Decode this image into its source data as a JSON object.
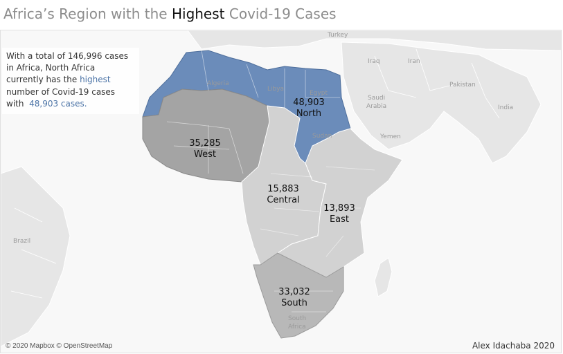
{
  "title": {
    "prefix": "Africa’s Region with the ",
    "highlight": "Highest",
    "suffix": " Covid-19 Cases"
  },
  "summary": {
    "line1_prefix": "With a total of ",
    "total_cases": "146,996",
    "line1_suffix": " cases",
    "line2": "in Africa, North Africa",
    "line3_prefix": "currently has the ",
    "line3_highlight": "highest",
    "line4": "number of Covid-19 cases",
    "line5_prefix": "with ",
    "north_cases": "48,903 cases."
  },
  "regions": [
    {
      "name": "North",
      "cases": "48,903",
      "color": "#6b8cba",
      "highlighted": true
    },
    {
      "name": "West",
      "cases": "35,285",
      "color": "#a4a4a4",
      "highlighted": false
    },
    {
      "name": "Central",
      "cases": "15,883",
      "color": "#d2d2d2",
      "highlighted": false
    },
    {
      "name": "East",
      "cases": "13,893",
      "color": "#d2d2d2",
      "highlighted": false
    },
    {
      "name": "South",
      "cases": "33,032",
      "color": "#b8b8b8",
      "highlighted": false
    }
  ],
  "place_names": {
    "turkey": "Turkey",
    "iraq": "Iraq",
    "iran": "Iran",
    "pakistan": "Pakistan",
    "india": "India",
    "saudi_line1": "Saudi",
    "saudi_line2": "Arabia",
    "yemen": "Yemen",
    "brazil": "Brazil",
    "algeria": "Algeria",
    "libya": "Libya",
    "egypt": "Egypt",
    "sudan": "Sudan",
    "south_africa_line1": "South",
    "south_africa_line2": "Africa"
  },
  "attribution": "© 2020 Mapbox © OpenStreetMap",
  "author": "Alex Idachaba 2020",
  "colors": {
    "north": "#6b8cba",
    "highlight_text": "#4b73a6",
    "title_grey": "#8c8c8c"
  }
}
